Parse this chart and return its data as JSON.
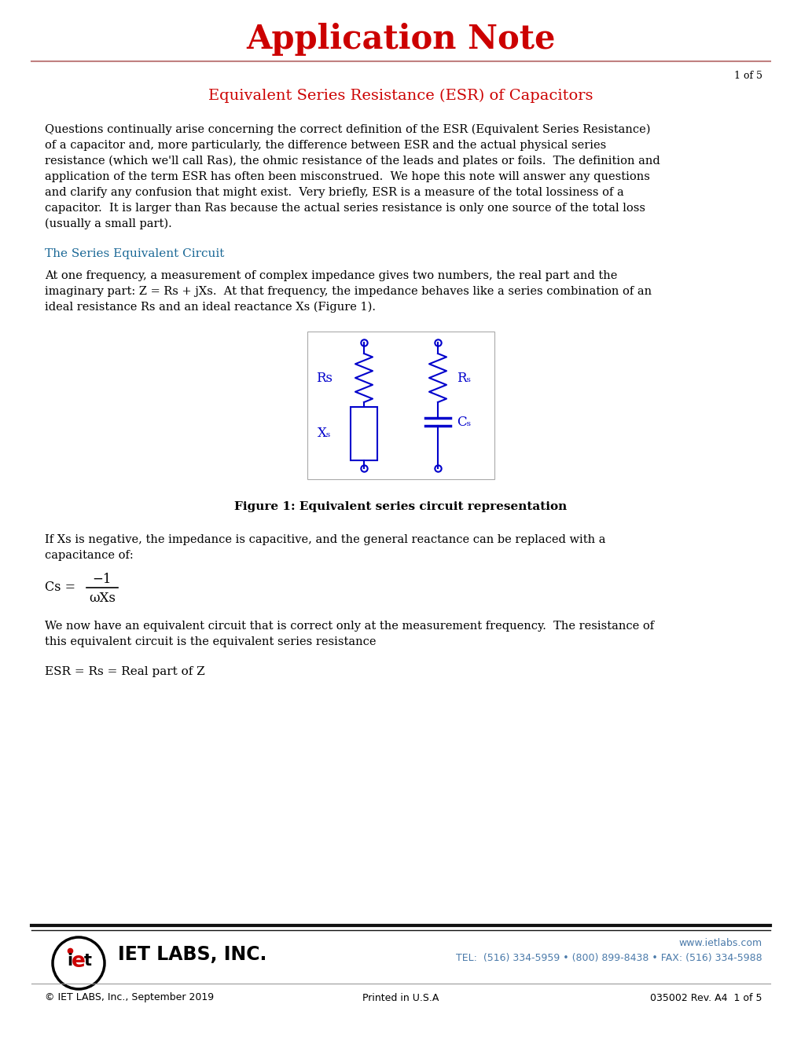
{
  "title": "Application Note",
  "subtitle": "Equivalent Series Resistance (ESR) of Capacitors",
  "page_num": "1 of 5",
  "section1_title": "The Series Equivalent Circuit",
  "fig_caption": "Figure 1: Equivalent series circuit representation",
  "esr_eq": "ESR = Rs = Real part of Z",
  "footer_copyright": "© IET LABS, Inc., September 2019",
  "footer_printed": "Printed in U.S.A",
  "footer_docnum": "035002 Rev. A4  1 of 5",
  "footer_web": "www.ietlabs.com",
  "footer_tel": "TEL:  (516) 334-5959 • (800) 899-8438 • FAX: (516) 334-5988",
  "title_color": "#CC0000",
  "subtitle_color": "#CC0000",
  "section_color": "#1a6896",
  "circuit_color": "#0000CC",
  "text_color": "#000000",
  "footer_link_color": "#4a7aaa",
  "bg_color": "#ffffff",
  "header_line_color": "#c08080",
  "footer_line_color": "#111111",
  "para1_lines": [
    "Questions continually arise concerning the correct definition of the ESR (Equivalent Series Resistance)",
    "of a capacitor and, more particularly, the difference between ESR and the actual physical series",
    "resistance (which we'll call Ras), the ohmic resistance of the leads and plates or foils.  The definition and",
    "application of the term ESR has often been misconstrued.  We hope this note will answer any questions",
    "and clarify any confusion that might exist.  Very briefly, ESR is a measure of the total lossiness of a",
    "capacitor.  It is larger than Ras because the actual series resistance is only one source of the total loss",
    "(usually a small part)."
  ],
  "para2_lines": [
    "At one frequency, a measurement of complex impedance gives two numbers, the real part and the",
    "imaginary part: Z = Rs + jXs.  At that frequency, the impedance behaves like a series combination of an",
    "ideal resistance Rs and an ideal reactance Xs (Figure 1)."
  ],
  "para3_lines": [
    "If Xs is negative, the impedance is capacitive, and the general reactance can be replaced with a",
    "capacitance of:"
  ],
  "para4_lines": [
    "We now have an equivalent circuit that is correct only at the measurement frequency.  The resistance of",
    "this equivalent circuit is the equivalent series resistance"
  ]
}
